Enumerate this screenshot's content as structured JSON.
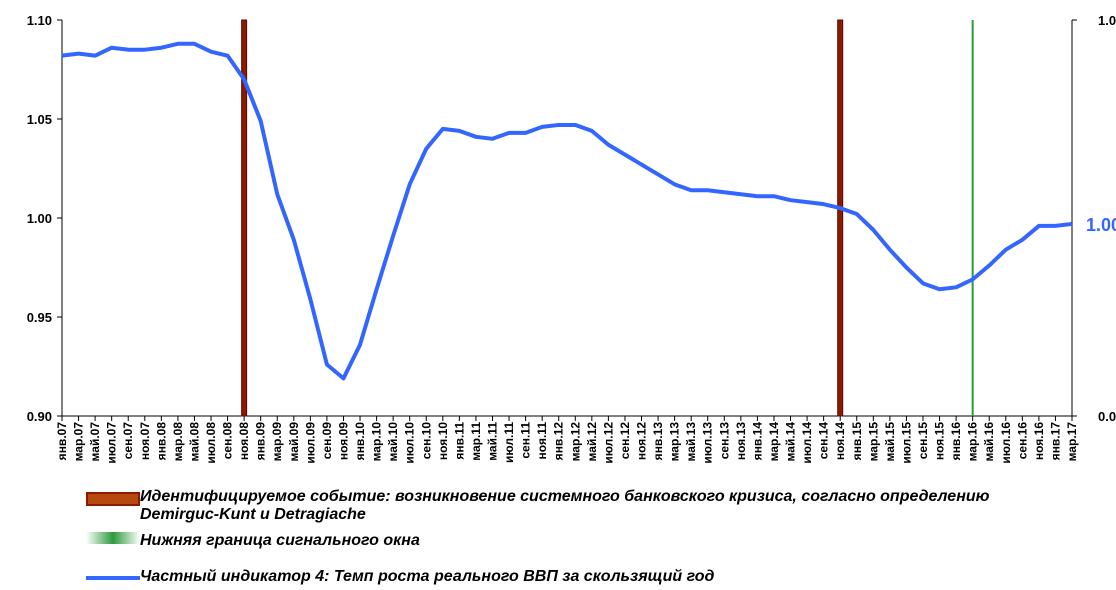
{
  "chart_data": {
    "type": "line",
    "categories": [
      "янв.07",
      "мар.07",
      "май.07",
      "июл.07",
      "сен.07",
      "ноя.07",
      "янв.08",
      "мар.08",
      "май.08",
      "июл.08",
      "сен.08",
      "ноя.08",
      "янв.09",
      "мар.09",
      "май.09",
      "июл.09",
      "сен.09",
      "ноя.09",
      "янв.10",
      "мар.10",
      "май.10",
      "июл.10",
      "сен.10",
      "ноя.10",
      "янв.11",
      "мар.11",
      "май.11",
      "июл.11",
      "сен.11",
      "ноя.11",
      "янв.12",
      "мар.12",
      "май.12",
      "июл.12",
      "сен.12",
      "ноя.12",
      "янв.13",
      "мар.13",
      "май.13",
      "июл.13",
      "сен.13",
      "ноя.13",
      "янв.14",
      "мар.14",
      "май.14",
      "июл.14",
      "сен.14",
      "ноя.14",
      "янв.15",
      "мар.15",
      "май.15",
      "июл.15",
      "сен.15",
      "ноя.15",
      "янв.16",
      "мар.16",
      "май.16",
      "июл.16",
      "сен.16",
      "ноя.16",
      "янв.17",
      "мар.17"
    ],
    "series": [
      {
        "name": "Идентифицируемое событие: возникновение системного банковского кризиса, согласно определению Demirguc-Kunt и Detragiache",
        "type": "bar",
        "axis": "y2",
        "color": "#8b1a00",
        "values": [
          null,
          null,
          null,
          null,
          null,
          null,
          null,
          null,
          null,
          null,
          null,
          1,
          null,
          null,
          null,
          null,
          null,
          null,
          null,
          null,
          null,
          null,
          null,
          null,
          null,
          null,
          null,
          null,
          null,
          null,
          null,
          null,
          null,
          null,
          null,
          null,
          null,
          null,
          null,
          null,
          null,
          null,
          null,
          null,
          null,
          null,
          null,
          1,
          null,
          null,
          null,
          null,
          null,
          null,
          null,
          null,
          null,
          null,
          null,
          null,
          null,
          null
        ]
      },
      {
        "name": "Нижняя граница сигнального окна",
        "type": "vline",
        "axis": "y2",
        "color": "#2e9a3c",
        "values": [
          null,
          null,
          null,
          null,
          null,
          null,
          null,
          null,
          null,
          null,
          null,
          null,
          null,
          null,
          null,
          null,
          null,
          null,
          null,
          null,
          null,
          null,
          null,
          null,
          null,
          null,
          null,
          null,
          null,
          null,
          null,
          null,
          null,
          null,
          null,
          null,
          null,
          null,
          null,
          null,
          null,
          null,
          null,
          null,
          null,
          null,
          null,
          null,
          null,
          null,
          null,
          null,
          null,
          null,
          null,
          1,
          null,
          null,
          null,
          null,
          null,
          null
        ]
      },
      {
        "name": "Частный индикатор 4: Темп роста реального ВВП за скользящий  год",
        "type": "line",
        "color": "#3366ff",
        "values": [
          1.082,
          1.083,
          1.082,
          1.086,
          1.085,
          1.085,
          1.086,
          1.088,
          1.088,
          1.084,
          1.082,
          1.07,
          1.049,
          1.012,
          0.989,
          0.959,
          0.926,
          0.919,
          0.936,
          0.964,
          0.991,
          1.017,
          1.035,
          1.045,
          1.044,
          1.041,
          1.04,
          1.043,
          1.043,
          1.046,
          1.047,
          1.047,
          1.044,
          1.037,
          1.032,
          1.027,
          1.022,
          1.017,
          1.014,
          1.014,
          1.013,
          1.012,
          1.011,
          1.011,
          1.009,
          1.008,
          1.007,
          1.005,
          1.002,
          0.994,
          0.984,
          0.975,
          0.967,
          0.964,
          0.965,
          0.969,
          0.976,
          0.984,
          0.989,
          0.996,
          0.996,
          0.997
        ]
      }
    ],
    "annotation": "1.00",
    "ylim": [
      0.9,
      1.1
    ],
    "yticks": [
      {
        "value": 0.9,
        "label": "0.90"
      },
      {
        "value": 0.95,
        "label": "0.95"
      },
      {
        "value": 1.0,
        "label": "1.00"
      },
      {
        "value": 1.05,
        "label": "1.05"
      },
      {
        "value": 1.1,
        "label": "1.10"
      }
    ],
    "y2lim": [
      0,
      1
    ],
    "y2ticks": [
      {
        "value": 0,
        "label": "0.0"
      },
      {
        "value": 1,
        "label": "1.0"
      }
    ],
    "grid": false
  }
}
